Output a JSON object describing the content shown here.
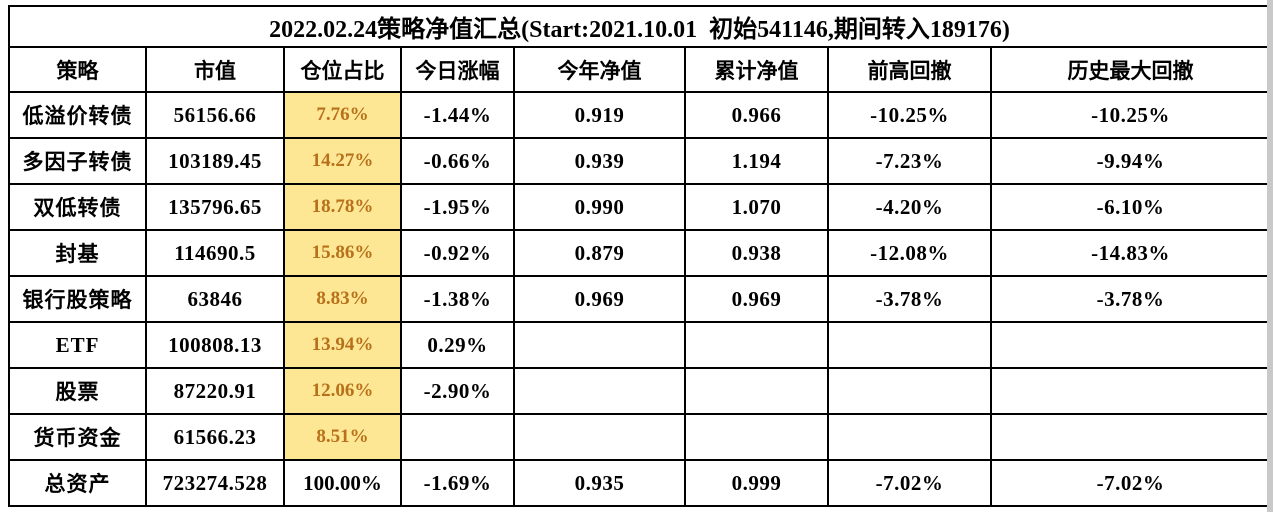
{
  "title": "2022.02.24策略净值汇总(Start:2021.10.01  初始541146,期间转入189176)",
  "table": {
    "columns": [
      "策略",
      "市值",
      "仓位占比",
      "今日涨幅",
      "今年净值",
      "累计净值",
      "前高回撤",
      "历史最大回撤"
    ],
    "rows": [
      {
        "cells": [
          "低溢价转债",
          "56156.66",
          "7.76%",
          "-1.44%",
          "0.919",
          "0.966",
          "-10.25%",
          "-10.25%"
        ],
        "position_highlighted": true
      },
      {
        "cells": [
          "多因子转债",
          "103189.45",
          "14.27%",
          "-0.66%",
          "0.939",
          "1.194",
          "-7.23%",
          "-9.94%"
        ],
        "position_highlighted": true
      },
      {
        "cells": [
          "双低转债",
          "135796.65",
          "18.78%",
          "-1.95%",
          "0.990",
          "1.070",
          "-4.20%",
          "-6.10%"
        ],
        "position_highlighted": true
      },
      {
        "cells": [
          "封基",
          "114690.5",
          "15.86%",
          "-0.92%",
          "0.879",
          "0.938",
          "-12.08%",
          "-14.83%"
        ],
        "position_highlighted": true
      },
      {
        "cells": [
          "银行股策略",
          "63846",
          "8.83%",
          "-1.38%",
          "0.969",
          "0.969",
          "-3.78%",
          "-3.78%"
        ],
        "position_highlighted": true
      },
      {
        "cells": [
          "ETF",
          "100808.13",
          "13.94%",
          "0.29%",
          "",
          "",
          "",
          ""
        ],
        "position_highlighted": true
      },
      {
        "cells": [
          "股票",
          "87220.91",
          "12.06%",
          "-2.90%",
          "",
          "",
          "",
          ""
        ],
        "position_highlighted": true
      },
      {
        "cells": [
          "货币资金",
          "61566.23",
          "8.51%",
          "",
          "",
          "",
          "",
          ""
        ],
        "position_highlighted": true
      },
      {
        "cells": [
          "总资产",
          "723274.528",
          "100.00%",
          "-1.69%",
          "0.935",
          "0.999",
          "-7.02%",
          "-7.02%"
        ],
        "position_highlighted": false
      }
    ]
  },
  "colors": {
    "highlight_bg": "#FDE794",
    "highlight_text": "#B8701A",
    "border": "#000000",
    "edge_grey": "#C9C9C9"
  }
}
